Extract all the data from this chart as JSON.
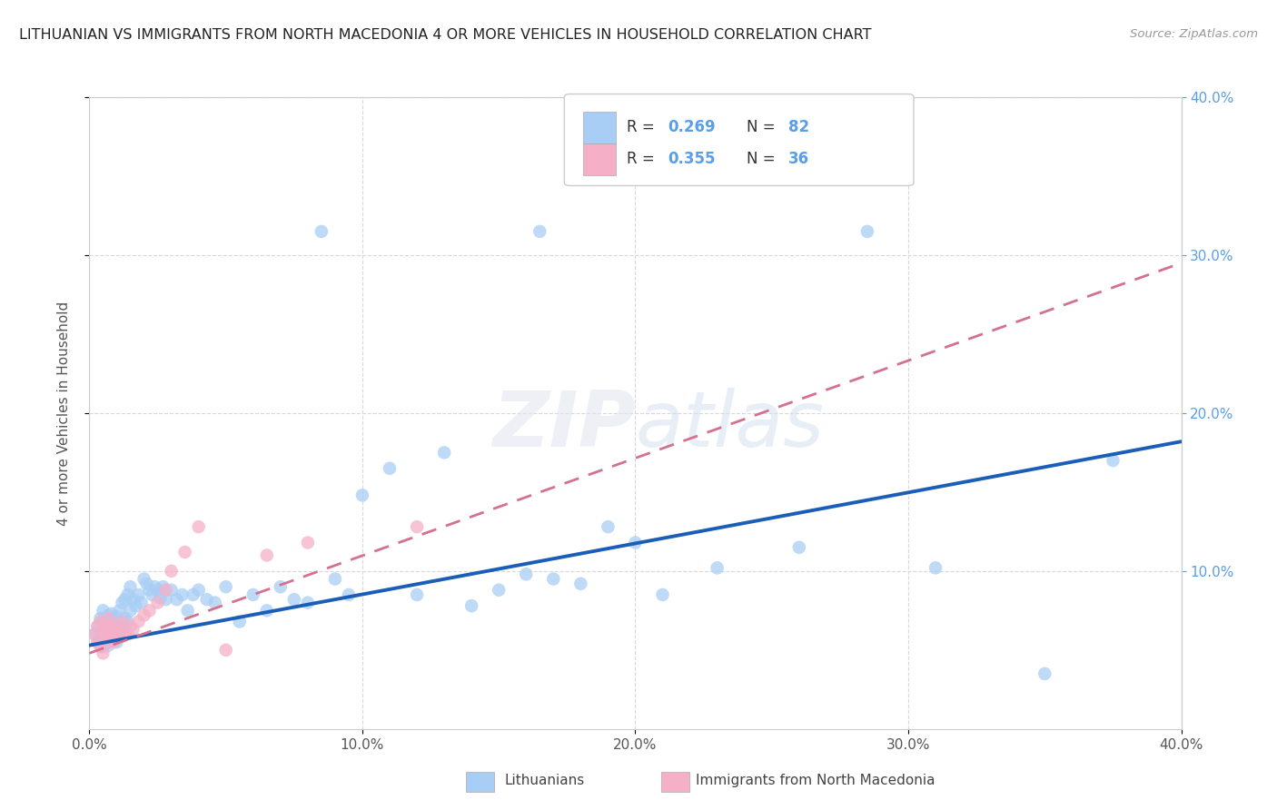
{
  "title": "LITHUANIAN VS IMMIGRANTS FROM NORTH MACEDONIA 4 OR MORE VEHICLES IN HOUSEHOLD CORRELATION CHART",
  "source": "Source: ZipAtlas.com",
  "ylabel": "4 or more Vehicles in Household",
  "xlim": [
    0.0,
    0.4
  ],
  "ylim": [
    0.0,
    0.4
  ],
  "xtick_values": [
    0.0,
    0.1,
    0.2,
    0.3,
    0.4
  ],
  "xtick_labels": [
    "0.0%",
    "10.0%",
    "20.0%",
    "30.0%",
    "40.0%"
  ],
  "ytick_values": [
    0.1,
    0.2,
    0.3,
    0.4
  ],
  "right_ytick_labels": [
    "10.0%",
    "20.0%",
    "30.0%",
    "40.0%"
  ],
  "right_ytick_values": [
    0.1,
    0.2,
    0.3,
    0.4
  ],
  "legend_R_blue": "0.269",
  "legend_N_blue": "82",
  "legend_R_pink": "0.355",
  "legend_N_pink": "36",
  "legend_label_blue": "Lithuanians",
  "legend_label_pink": "Immigrants from North Macedonia",
  "blue_color": "#a8cef5",
  "pink_color": "#f5b0c8",
  "blue_line_color": "#1a5eb8",
  "pink_line_color": "#d47090",
  "watermark": "ZIPatlas",
  "blue_line_x0": 0.0,
  "blue_line_y0": 0.053,
  "blue_line_x1": 0.4,
  "blue_line_y1": 0.182,
  "pink_line_x0": 0.0,
  "pink_line_y0": 0.048,
  "pink_line_x1": 0.4,
  "pink_line_y1": 0.295,
  "blue_x": [
    0.002,
    0.003,
    0.003,
    0.004,
    0.004,
    0.005,
    0.005,
    0.005,
    0.006,
    0.006,
    0.006,
    0.007,
    0.007,
    0.007,
    0.008,
    0.008,
    0.008,
    0.009,
    0.009,
    0.01,
    0.01,
    0.01,
    0.011,
    0.011,
    0.012,
    0.012,
    0.013,
    0.013,
    0.014,
    0.014,
    0.015,
    0.015,
    0.016,
    0.017,
    0.018,
    0.019,
    0.02,
    0.021,
    0.022,
    0.023,
    0.024,
    0.025,
    0.026,
    0.027,
    0.028,
    0.03,
    0.032,
    0.034,
    0.036,
    0.038,
    0.04,
    0.043,
    0.046,
    0.05,
    0.055,
    0.06,
    0.065,
    0.07,
    0.075,
    0.08,
    0.09,
    0.095,
    0.1,
    0.11,
    0.12,
    0.13,
    0.14,
    0.15,
    0.16,
    0.17,
    0.18,
    0.19,
    0.2,
    0.21,
    0.23,
    0.26,
    0.285,
    0.31,
    0.35,
    0.375,
    0.085,
    0.165
  ],
  "blue_y": [
    0.06,
    0.055,
    0.065,
    0.058,
    0.07,
    0.052,
    0.068,
    0.075,
    0.056,
    0.062,
    0.07,
    0.053,
    0.06,
    0.072,
    0.057,
    0.065,
    0.073,
    0.06,
    0.068,
    0.055,
    0.063,
    0.071,
    0.06,
    0.075,
    0.065,
    0.08,
    0.07,
    0.082,
    0.068,
    0.085,
    0.075,
    0.09,
    0.082,
    0.078,
    0.085,
    0.08,
    0.095,
    0.092,
    0.088,
    0.085,
    0.09,
    0.088,
    0.083,
    0.09,
    0.082,
    0.088,
    0.082,
    0.085,
    0.075,
    0.085,
    0.088,
    0.082,
    0.08,
    0.09,
    0.068,
    0.085,
    0.075,
    0.09,
    0.082,
    0.08,
    0.095,
    0.085,
    0.148,
    0.165,
    0.085,
    0.175,
    0.078,
    0.088,
    0.098,
    0.095,
    0.092,
    0.128,
    0.118,
    0.085,
    0.102,
    0.115,
    0.315,
    0.102,
    0.035,
    0.17,
    0.315,
    0.315
  ],
  "pink_x": [
    0.002,
    0.003,
    0.003,
    0.004,
    0.004,
    0.005,
    0.005,
    0.006,
    0.006,
    0.007,
    0.007,
    0.007,
    0.008,
    0.008,
    0.009,
    0.009,
    0.01,
    0.01,
    0.011,
    0.012,
    0.013,
    0.014,
    0.015,
    0.016,
    0.018,
    0.02,
    0.022,
    0.025,
    0.028,
    0.03,
    0.035,
    0.04,
    0.05,
    0.065,
    0.08,
    0.12
  ],
  "pink_y": [
    0.06,
    0.055,
    0.065,
    0.052,
    0.068,
    0.048,
    0.062,
    0.058,
    0.065,
    0.055,
    0.06,
    0.07,
    0.058,
    0.065,
    0.055,
    0.062,
    0.058,
    0.065,
    0.062,
    0.068,
    0.06,
    0.06,
    0.065,
    0.063,
    0.068,
    0.072,
    0.075,
    0.08,
    0.088,
    0.1,
    0.112,
    0.128,
    0.05,
    0.11,
    0.118,
    0.128
  ]
}
